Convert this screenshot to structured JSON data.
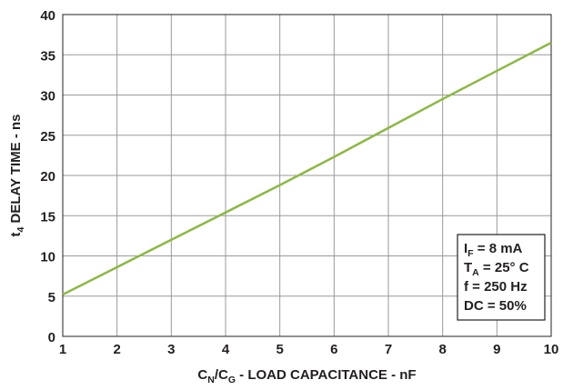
{
  "chart_data": {
    "type": "line",
    "x": [
      1,
      2,
      3,
      4,
      5,
      6,
      7,
      8,
      9,
      10
    ],
    "series": [
      {
        "color": "#8cb843",
        "values": [
          5.2,
          8.6,
          12.0,
          15.4,
          18.8,
          22.3,
          25.9,
          29.5,
          33.0,
          36.5
        ]
      }
    ],
    "xlim": [
      1,
      10
    ],
    "xticks": [
      1,
      2,
      3,
      4,
      5,
      6,
      7,
      8,
      9,
      10
    ],
    "ylim": [
      0,
      40
    ],
    "yticks": [
      0,
      5,
      10,
      15,
      20,
      25,
      30,
      35,
      40
    ],
    "grid": true,
    "xlabel": [
      {
        "text": "C"
      },
      {
        "text": "N",
        "sub": true
      },
      {
        "text": "/C"
      },
      {
        "text": "G",
        "sub": true
      },
      {
        "text": " - LOAD CAPACITANCE - nF"
      }
    ],
    "ylabel": [
      {
        "text": "t"
      },
      {
        "text": "4",
        "sub": true
      },
      {
        "text": " DELAY TIME - ns"
      }
    ],
    "annotation": [
      [
        {
          "text": "I"
        },
        {
          "text": "F",
          "sub": true
        },
        {
          "text": " = 8 mA"
        }
      ],
      [
        {
          "text": "T"
        },
        {
          "text": "A",
          "sub": true
        },
        {
          "text": " = 25° C"
        }
      ],
      [
        {
          "text": "f = 250 Hz"
        }
      ],
      [
        {
          "text": "DC = 50%"
        }
      ]
    ]
  }
}
